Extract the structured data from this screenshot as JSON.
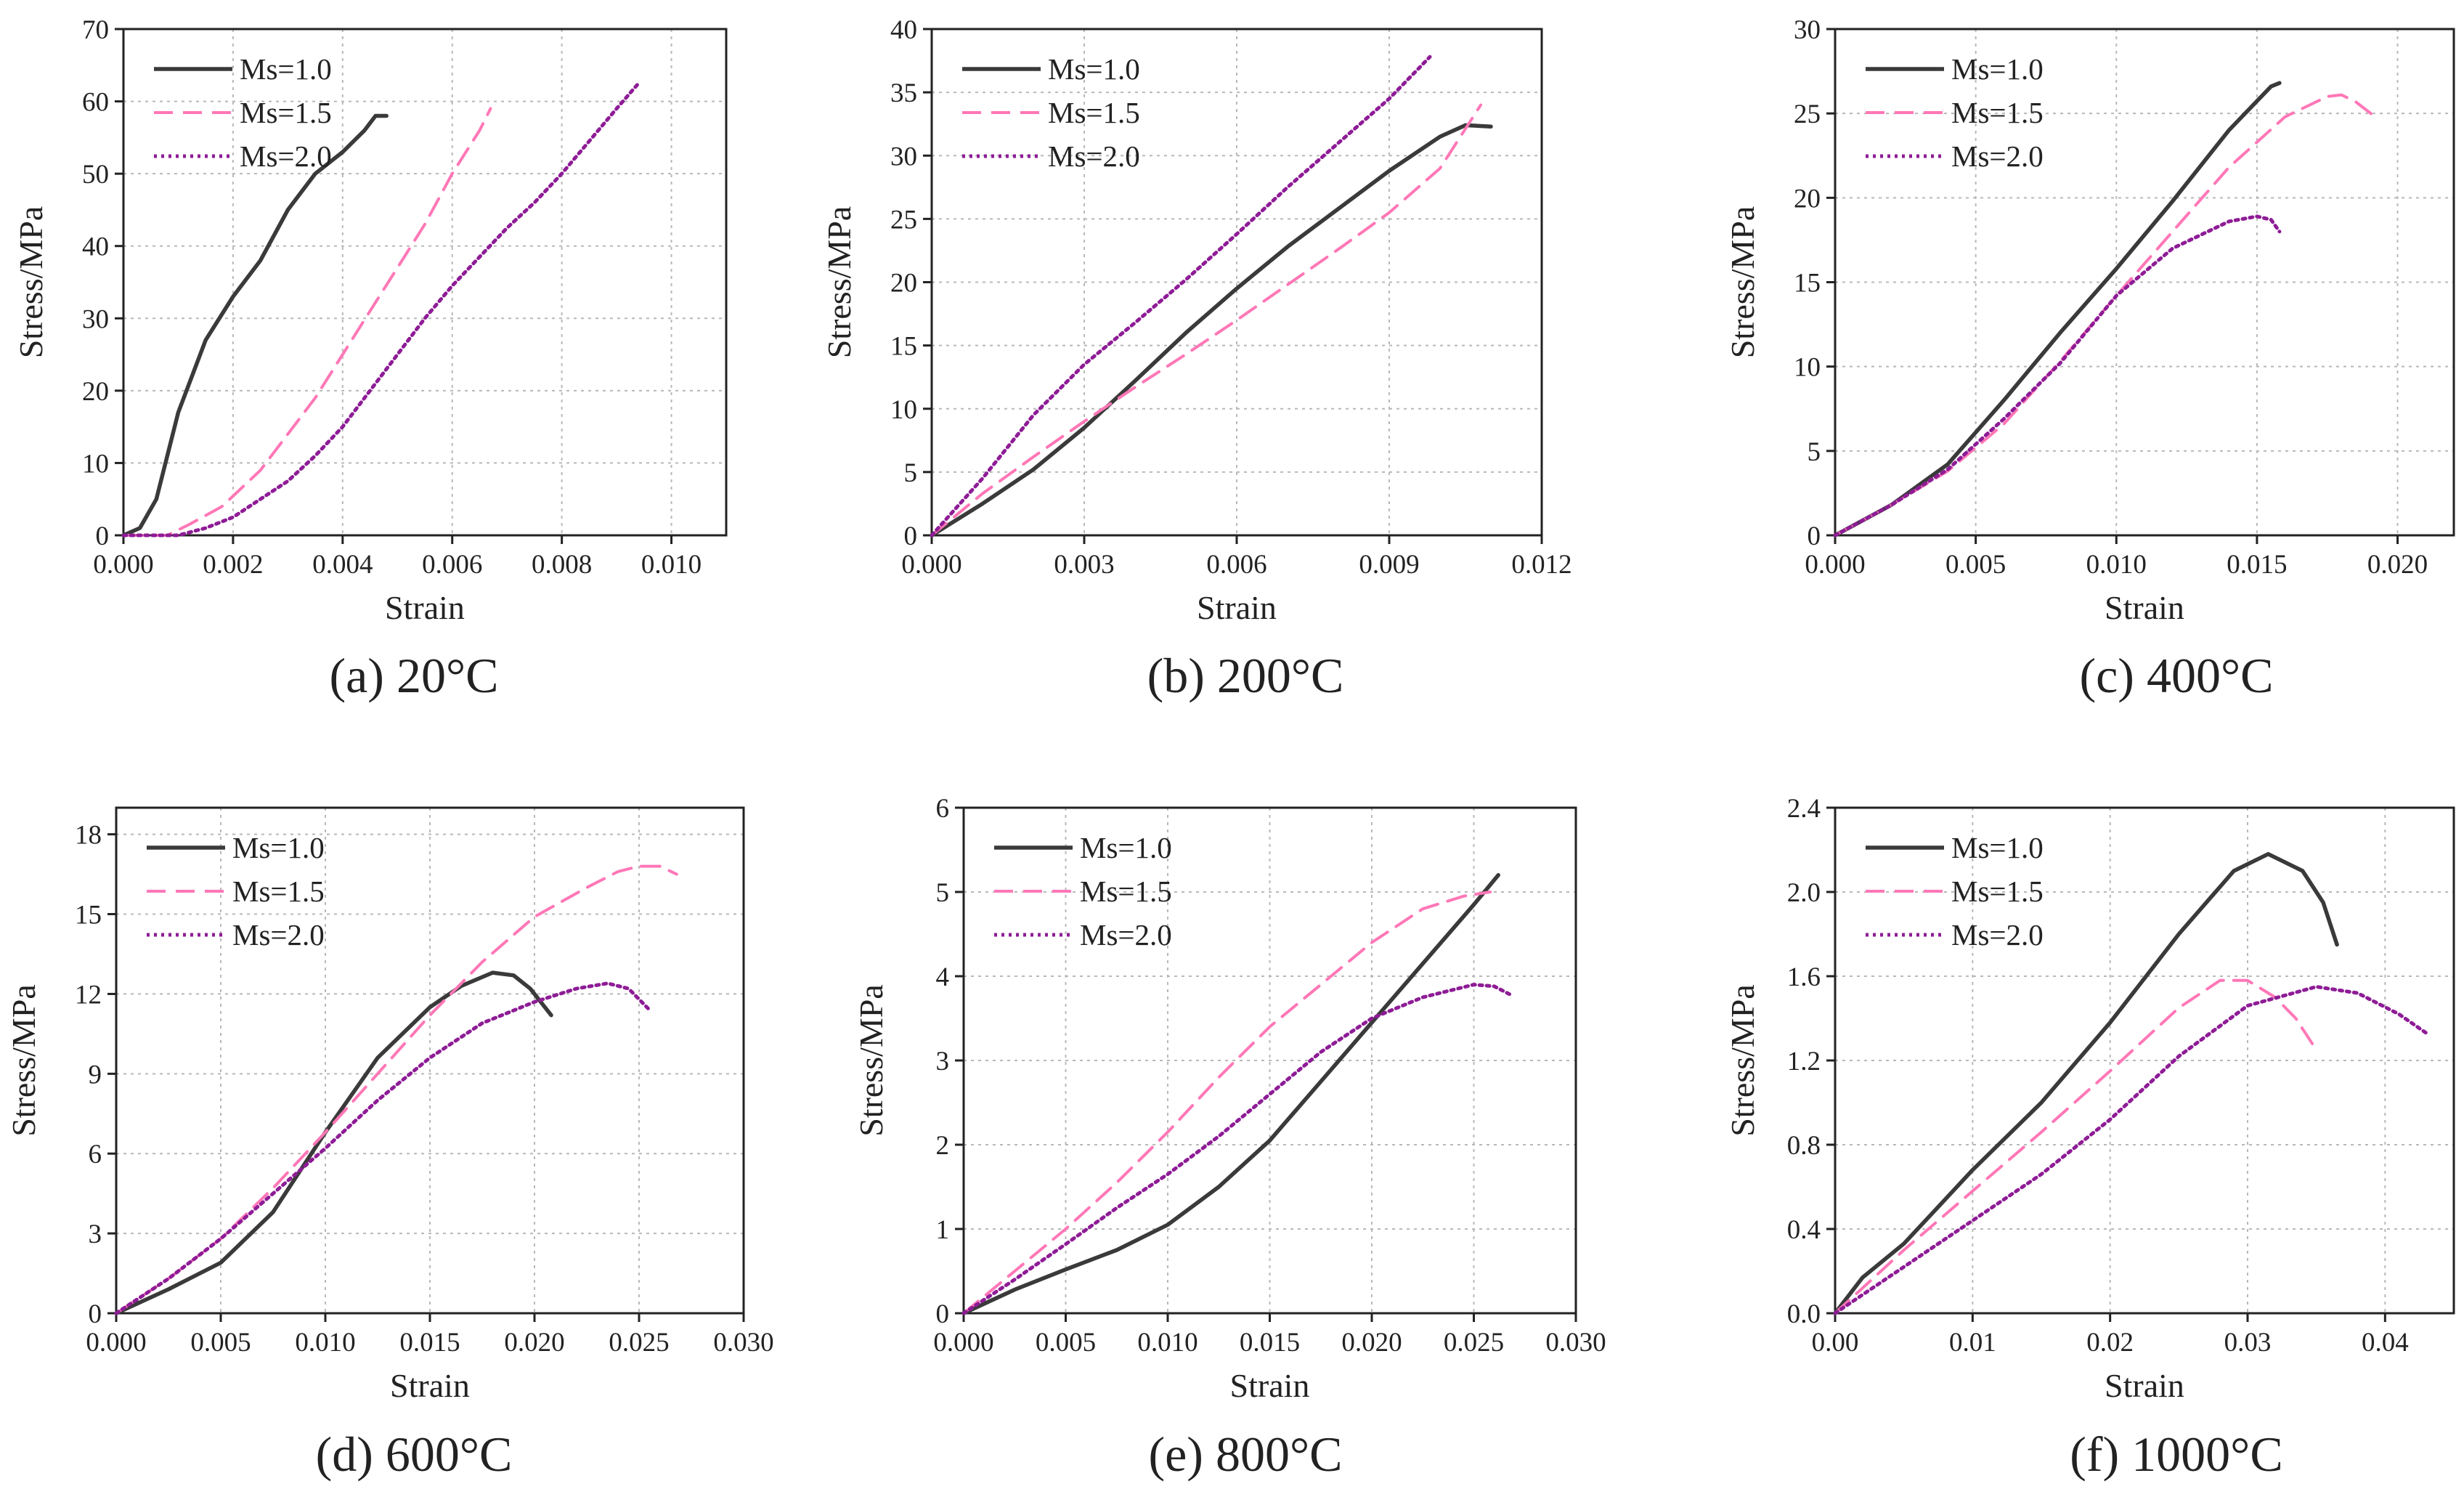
{
  "figure": {
    "panels": [
      {
        "caption": "(a) 20°C",
        "chart_data": {
          "type": "line",
          "title": "",
          "xlabel": "Strain",
          "ylabel": "Stress/MPa",
          "xlim": [
            0,
            0.011
          ],
          "ylim": [
            0,
            70
          ],
          "xticks": [
            0,
            0.002,
            0.004,
            0.006,
            0.008,
            0.01
          ],
          "xtick_labels": [
            "0.000",
            "0.002",
            "0.004",
            "0.006",
            "0.008",
            "0.010"
          ],
          "yticks": [
            0,
            10,
            20,
            30,
            40,
            50,
            60,
            70
          ],
          "ytick_labels": [
            "0",
            "10",
            "20",
            "30",
            "40",
            "50",
            "60",
            "70"
          ],
          "grid": true,
          "legend_position": "top-left",
          "series": [
            {
              "name": "Ms=1.0",
              "style": "solid",
              "color": "#3a3a3a",
              "x": [
                0,
                0.0003,
                0.0006,
                0.001,
                0.0015,
                0.002,
                0.0025,
                0.003,
                0.0035,
                0.004,
                0.0044,
                0.0046,
                0.0048
              ],
              "y": [
                0,
                1,
                5,
                17,
                27,
                33,
                38,
                45,
                50,
                53,
                56,
                58,
                58
              ]
            },
            {
              "name": "Ms=1.5",
              "style": "dashed",
              "color": "#ff77b7",
              "x": [
                0,
                0.0008,
                0.0012,
                0.0018,
                0.0025,
                0.003,
                0.0035,
                0.004,
                0.0045,
                0.005,
                0.0055,
                0.006,
                0.0065,
                0.0067
              ],
              "y": [
                0,
                0,
                1.5,
                4,
                9,
                14,
                19,
                25,
                31,
                37,
                43,
                50,
                56,
                59
              ]
            },
            {
              "name": "Ms=2.0",
              "style": "dotted",
              "color": "#8e1c96",
              "x": [
                0,
                0.001,
                0.0015,
                0.002,
                0.0025,
                0.003,
                0.0035,
                0.004,
                0.0045,
                0.005,
                0.0055,
                0.006,
                0.0065,
                0.007,
                0.0075,
                0.008,
                0.0085,
                0.009,
                0.0094
              ],
              "y": [
                0,
                0,
                1,
                2.5,
                5,
                7.5,
                11,
                15,
                20,
                25,
                30,
                34.5,
                38.5,
                42.5,
                46,
                50,
                54.5,
                59,
                62.5
              ]
            }
          ]
        }
      },
      {
        "caption": "(b) 200°C",
        "chart_data": {
          "type": "line",
          "title": "",
          "xlabel": "Strain",
          "ylabel": "Stress/MPa",
          "xlim": [
            0,
            0.012
          ],
          "ylim": [
            0,
            40
          ],
          "xticks": [
            0,
            0.003,
            0.006,
            0.009,
            0.012
          ],
          "xtick_labels": [
            "0.000",
            "0.003",
            "0.006",
            "0.009",
            "0.012"
          ],
          "yticks": [
            0,
            5,
            10,
            15,
            20,
            25,
            30,
            35,
            40
          ],
          "ytick_labels": [
            "0",
            "5",
            "10",
            "15",
            "20",
            "25",
            "30",
            "35",
            "40"
          ],
          "grid": true,
          "legend_position": "top-left",
          "series": [
            {
              "name": "Ms=1.0",
              "style": "solid",
              "color": "#3a3a3a",
              "x": [
                0,
                0.001,
                0.002,
                0.003,
                0.004,
                0.005,
                0.006,
                0.007,
                0.008,
                0.009,
                0.01,
                0.0105,
                0.011
              ],
              "y": [
                0,
                2.5,
                5.2,
                8.5,
                12.2,
                16,
                19.5,
                22.8,
                25.8,
                28.8,
                31.5,
                32.4,
                32.3
              ]
            },
            {
              "name": "Ms=1.5",
              "style": "dashed",
              "color": "#ff77b7",
              "x": [
                0,
                0.001,
                0.002,
                0.003,
                0.004,
                0.005,
                0.006,
                0.007,
                0.008,
                0.009,
                0.01,
                0.0108
              ],
              "y": [
                0,
                3.3,
                6.2,
                9,
                11.7,
                14.3,
                17,
                19.8,
                22.6,
                25.5,
                29,
                34
              ]
            },
            {
              "name": "Ms=2.0",
              "style": "dotted",
              "color": "#8e1c96",
              "x": [
                0,
                0.001,
                0.002,
                0.003,
                0.004,
                0.005,
                0.006,
                0.007,
                0.008,
                0.009,
                0.0098
              ],
              "y": [
                0,
                4.5,
                9.5,
                13.5,
                16.8,
                20.2,
                23.8,
                27.5,
                31,
                34.5,
                37.8
              ]
            }
          ]
        }
      },
      {
        "caption": "(c) 400°C",
        "chart_data": {
          "type": "line",
          "title": "",
          "xlabel": "Strain",
          "ylabel": "Stress/MPa",
          "xlim": [
            0,
            0.022
          ],
          "ylim": [
            0,
            30
          ],
          "xticks": [
            0,
            0.005,
            0.01,
            0.015,
            0.02
          ],
          "xtick_labels": [
            "0.000",
            "0.005",
            "0.010",
            "0.015",
            "0.020"
          ],
          "yticks": [
            0,
            5,
            10,
            15,
            20,
            25,
            30
          ],
          "ytick_labels": [
            "0",
            "5",
            "10",
            "15",
            "20",
            "25",
            "30"
          ],
          "grid": true,
          "legend_position": "top-left",
          "series": [
            {
              "name": "Ms=1.0",
              "style": "solid",
              "color": "#3a3a3a",
              "x": [
                0,
                0.002,
                0.004,
                0.006,
                0.008,
                0.01,
                0.012,
                0.014,
                0.0155,
                0.0158
              ],
              "y": [
                0,
                1.8,
                4.2,
                8,
                12,
                15.8,
                19.8,
                24,
                26.6,
                26.8
              ]
            },
            {
              "name": "Ms=1.5",
              "style": "dashed",
              "color": "#ff77b7",
              "x": [
                0,
                0.002,
                0.004,
                0.006,
                0.008,
                0.01,
                0.012,
                0.014,
                0.016,
                0.0175,
                0.018,
                0.0185,
                0.0192
              ],
              "y": [
                0,
                1.8,
                3.8,
                6.6,
                10.3,
                14.2,
                18,
                21.8,
                24.8,
                26,
                26.1,
                25.7,
                24.8
              ]
            },
            {
              "name": "Ms=2.0",
              "style": "dotted",
              "color": "#8e1c96",
              "x": [
                0,
                0.002,
                0.004,
                0.006,
                0.008,
                0.01,
                0.012,
                0.014,
                0.015,
                0.0155,
                0.0158
              ],
              "y": [
                0,
                1.8,
                3.9,
                6.9,
                10.2,
                14.2,
                17,
                18.6,
                18.9,
                18.7,
                18
              ]
            }
          ]
        }
      },
      {
        "caption": "(d) 600°C",
        "chart_data": {
          "type": "line",
          "title": "",
          "xlabel": "Strain",
          "ylabel": "Stress/MPa",
          "xlim": [
            0,
            0.03
          ],
          "ylim": [
            0,
            19
          ],
          "xticks": [
            0,
            0.005,
            0.01,
            0.015,
            0.02,
            0.025,
            0.03
          ],
          "xtick_labels": [
            "0.000",
            "0.005",
            "0.010",
            "0.015",
            "0.020",
            "0.025",
            "0.030"
          ],
          "yticks": [
            0,
            3,
            6,
            9,
            12,
            15,
            18
          ],
          "ytick_labels": [
            "0",
            "3",
            "6",
            "9",
            "12",
            "15",
            "18"
          ],
          "grid": true,
          "legend_position": "top-left",
          "series": [
            {
              "name": "Ms=1.0",
              "style": "solid",
              "color": "#3a3a3a",
              "x": [
                0,
                0.0025,
                0.005,
                0.0075,
                0.01,
                0.0125,
                0.015,
                0.0165,
                0.018,
                0.019,
                0.0198,
                0.0208
              ],
              "y": [
                0,
                0.9,
                1.9,
                3.8,
                6.8,
                9.6,
                11.5,
                12.3,
                12.8,
                12.7,
                12.2,
                11.2
              ]
            },
            {
              "name": "Ms=1.5",
              "style": "dashed",
              "color": "#ff77b7",
              "x": [
                0,
                0.0025,
                0.005,
                0.0075,
                0.01,
                0.0125,
                0.015,
                0.0175,
                0.02,
                0.0225,
                0.024,
                0.025,
                0.026,
                0.0268
              ],
              "y": [
                0,
                1.3,
                2.8,
                4.7,
                6.8,
                9,
                11.2,
                13.2,
                14.9,
                16,
                16.6,
                16.8,
                16.8,
                16.5
              ]
            },
            {
              "name": "Ms=2.0",
              "style": "dotted",
              "color": "#8e1c96",
              "x": [
                0,
                0.0025,
                0.005,
                0.0075,
                0.01,
                0.0125,
                0.015,
                0.0175,
                0.02,
                0.022,
                0.0235,
                0.0245,
                0.0255
              ],
              "y": [
                0,
                1.3,
                2.8,
                4.5,
                6.2,
                8,
                9.6,
                10.9,
                11.7,
                12.2,
                12.4,
                12.2,
                11.4
              ]
            }
          ]
        }
      },
      {
        "caption": "(e) 800°C",
        "chart_data": {
          "type": "line",
          "title": "",
          "xlabel": "Strain",
          "ylabel": "Stress/MPa",
          "xlim": [
            0,
            0.03
          ],
          "ylim": [
            0,
            6
          ],
          "xticks": [
            0,
            0.005,
            0.01,
            0.015,
            0.02,
            0.025,
            0.03
          ],
          "xtick_labels": [
            "0.000",
            "0.005",
            "0.010",
            "0.015",
            "0.020",
            "0.025",
            "0.030"
          ],
          "yticks": [
            0,
            1,
            2,
            3,
            4,
            5,
            6
          ],
          "ytick_labels": [
            "0",
            "1",
            "2",
            "3",
            "4",
            "5",
            "6"
          ],
          "grid": true,
          "legend_position": "top-left",
          "series": [
            {
              "name": "Ms=1.0",
              "style": "solid",
              "color": "#3a3a3a",
              "x": [
                0,
                0.0025,
                0.005,
                0.0075,
                0.01,
                0.0125,
                0.015,
                0.0175,
                0.02,
                0.0225,
                0.025,
                0.0262
              ],
              "y": [
                0,
                0.28,
                0.52,
                0.75,
                1.05,
                1.5,
                2.05,
                2.75,
                3.45,
                4.15,
                4.85,
                5.2
              ]
            },
            {
              "name": "Ms=1.5",
              "style": "dashed",
              "color": "#ff77b7",
              "x": [
                0,
                0.0025,
                0.005,
                0.0075,
                0.01,
                0.0125,
                0.015,
                0.0175,
                0.02,
                0.0225,
                0.0245,
                0.0258
              ],
              "y": [
                0,
                0.5,
                1,
                1.55,
                2.15,
                2.8,
                3.4,
                3.9,
                4.4,
                4.8,
                4.95,
                5
              ]
            },
            {
              "name": "Ms=2.0",
              "style": "dotted",
              "color": "#8e1c96",
              "x": [
                0,
                0.0025,
                0.005,
                0.0075,
                0.01,
                0.0125,
                0.015,
                0.0175,
                0.02,
                0.0225,
                0.025,
                0.026,
                0.0268
              ],
              "y": [
                0,
                0.4,
                0.82,
                1.25,
                1.65,
                2.1,
                2.6,
                3.1,
                3.5,
                3.75,
                3.9,
                3.88,
                3.78
              ]
            }
          ]
        }
      },
      {
        "caption": "(f) 1000°C",
        "chart_data": {
          "type": "line",
          "title": "",
          "xlabel": "Strain",
          "ylabel": "Stress/MPa",
          "xlim": [
            0,
            0.045
          ],
          "ylim": [
            0,
            2.4
          ],
          "xticks": [
            0,
            0.01,
            0.02,
            0.03,
            0.04
          ],
          "xtick_labels": [
            "0.00",
            "0.01",
            "0.02",
            "0.03",
            "0.04"
          ],
          "yticks": [
            0,
            0.4,
            0.8,
            1.2,
            1.6,
            2.0,
            2.4
          ],
          "ytick_labels": [
            "0.0",
            "0.4",
            "0.8",
            "1.2",
            "1.6",
            "2.0",
            "2.4"
          ],
          "grid": true,
          "legend_position": "top-left",
          "series": [
            {
              "name": "Ms=1.0",
              "style": "solid",
              "color": "#3a3a3a",
              "x": [
                0,
                0.002,
                0.005,
                0.01,
                0.015,
                0.02,
                0.025,
                0.029,
                0.0315,
                0.034,
                0.0355,
                0.0365
              ],
              "y": [
                0,
                0.17,
                0.33,
                0.68,
                1.0,
                1.38,
                1.8,
                2.1,
                2.18,
                2.1,
                1.95,
                1.75
              ]
            },
            {
              "name": "Ms=1.5",
              "style": "dashed",
              "color": "#ff77b7",
              "x": [
                0,
                0.005,
                0.01,
                0.015,
                0.02,
                0.025,
                0.028,
                0.03,
                0.032,
                0.0335,
                0.035
              ],
              "y": [
                0,
                0.3,
                0.58,
                0.86,
                1.15,
                1.45,
                1.58,
                1.58,
                1.5,
                1.4,
                1.25
              ]
            },
            {
              "name": "Ms=2.0",
              "style": "dotted",
              "color": "#8e1c96",
              "x": [
                0,
                0.005,
                0.01,
                0.015,
                0.02,
                0.025,
                0.03,
                0.035,
                0.038,
                0.041,
                0.043
              ],
              "y": [
                0,
                0.22,
                0.44,
                0.66,
                0.92,
                1.22,
                1.46,
                1.55,
                1.52,
                1.42,
                1.33
              ]
            }
          ]
        }
      }
    ]
  }
}
